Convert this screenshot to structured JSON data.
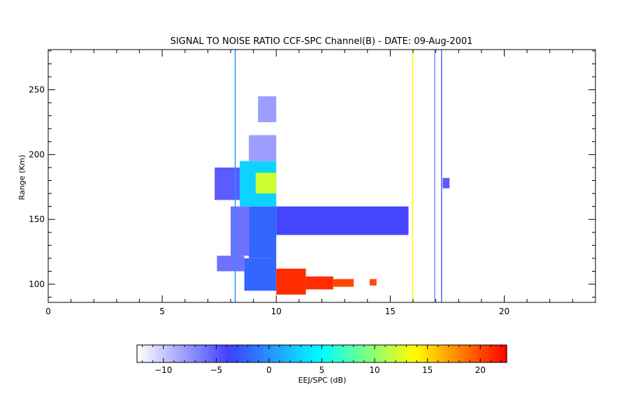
{
  "chart_data": {
    "type": "heatmap",
    "title": "SIGNAL TO NOISE RATIO CCF-SPC Channel(B) - DATE: 09-Aug-2001",
    "xlabel": "",
    "ylabel": "Range (Km)",
    "xlim": [
      0,
      24
    ],
    "ylim": [
      86,
      281
    ],
    "x_ticks": [
      0,
      5,
      10,
      15,
      20
    ],
    "y_ticks": [
      100,
      150,
      200,
      250
    ],
    "grid": false,
    "colorbar": {
      "label": "EEJ/SPC (dB)",
      "range": [
        -12.5,
        22.5
      ],
      "ticks": [
        -10,
        -5,
        0,
        5,
        10,
        15,
        20
      ],
      "colors": [
        "#ffffff",
        "#4040ff",
        "#00ffff",
        "#ffff00",
        "#ff0000"
      ]
    },
    "regions": [
      {
        "x": [
          8.6,
          10.0
        ],
        "y": [
          95,
          120
        ],
        "snr_db": -2
      },
      {
        "x": [
          7.4,
          8.6
        ],
        "y": [
          110,
          122
        ],
        "snr_db": -6
      },
      {
        "x": [
          8.8,
          10.0
        ],
        "y": [
          120,
          160
        ],
        "snr_db": -2
      },
      {
        "x": [
          8.0,
          8.8
        ],
        "y": [
          122,
          160
        ],
        "snr_db": -6
      },
      {
        "x": [
          8.4,
          10.0
        ],
        "y": [
          160,
          195
        ],
        "snr_db": 3
      },
      {
        "x": [
          7.3,
          8.4
        ],
        "y": [
          165,
          190
        ],
        "snr_db": -5
      },
      {
        "x": [
          9.1,
          10.0
        ],
        "y": [
          170,
          186
        ],
        "snr_db": 12
      },
      {
        "x": [
          8.8,
          10.0
        ],
        "y": [
          195,
          215
        ],
        "snr_db": -8
      },
      {
        "x": [
          9.2,
          10.0
        ],
        "y": [
          225,
          245
        ],
        "snr_db": -8
      },
      {
        "x": [
          10.0,
          11.3
        ],
        "y": [
          92,
          112
        ],
        "snr_db": 21
      },
      {
        "x": [
          11.3,
          12.5
        ],
        "y": [
          96,
          106
        ],
        "snr_db": 21
      },
      {
        "x": [
          12.5,
          13.4
        ],
        "y": [
          98,
          104
        ],
        "snr_db": 20
      },
      {
        "x": [
          14.1,
          14.4
        ],
        "y": [
          99,
          104
        ],
        "snr_db": 20
      },
      {
        "x": [
          10.0,
          15.8
        ],
        "y": [
          138,
          160
        ],
        "snr_db": -4
      },
      {
        "x": [
          17.3,
          17.6
        ],
        "y": [
          174,
          182
        ],
        "snr_db": -5
      }
    ],
    "vertical_lines": [
      {
        "x": 8.2,
        "snr_db": 0
      },
      {
        "x": 15.98,
        "snr_db": 14
      },
      {
        "x": 16.95,
        "snr_db": -7
      },
      {
        "x": 17.25,
        "snr_db": -5
      }
    ]
  }
}
